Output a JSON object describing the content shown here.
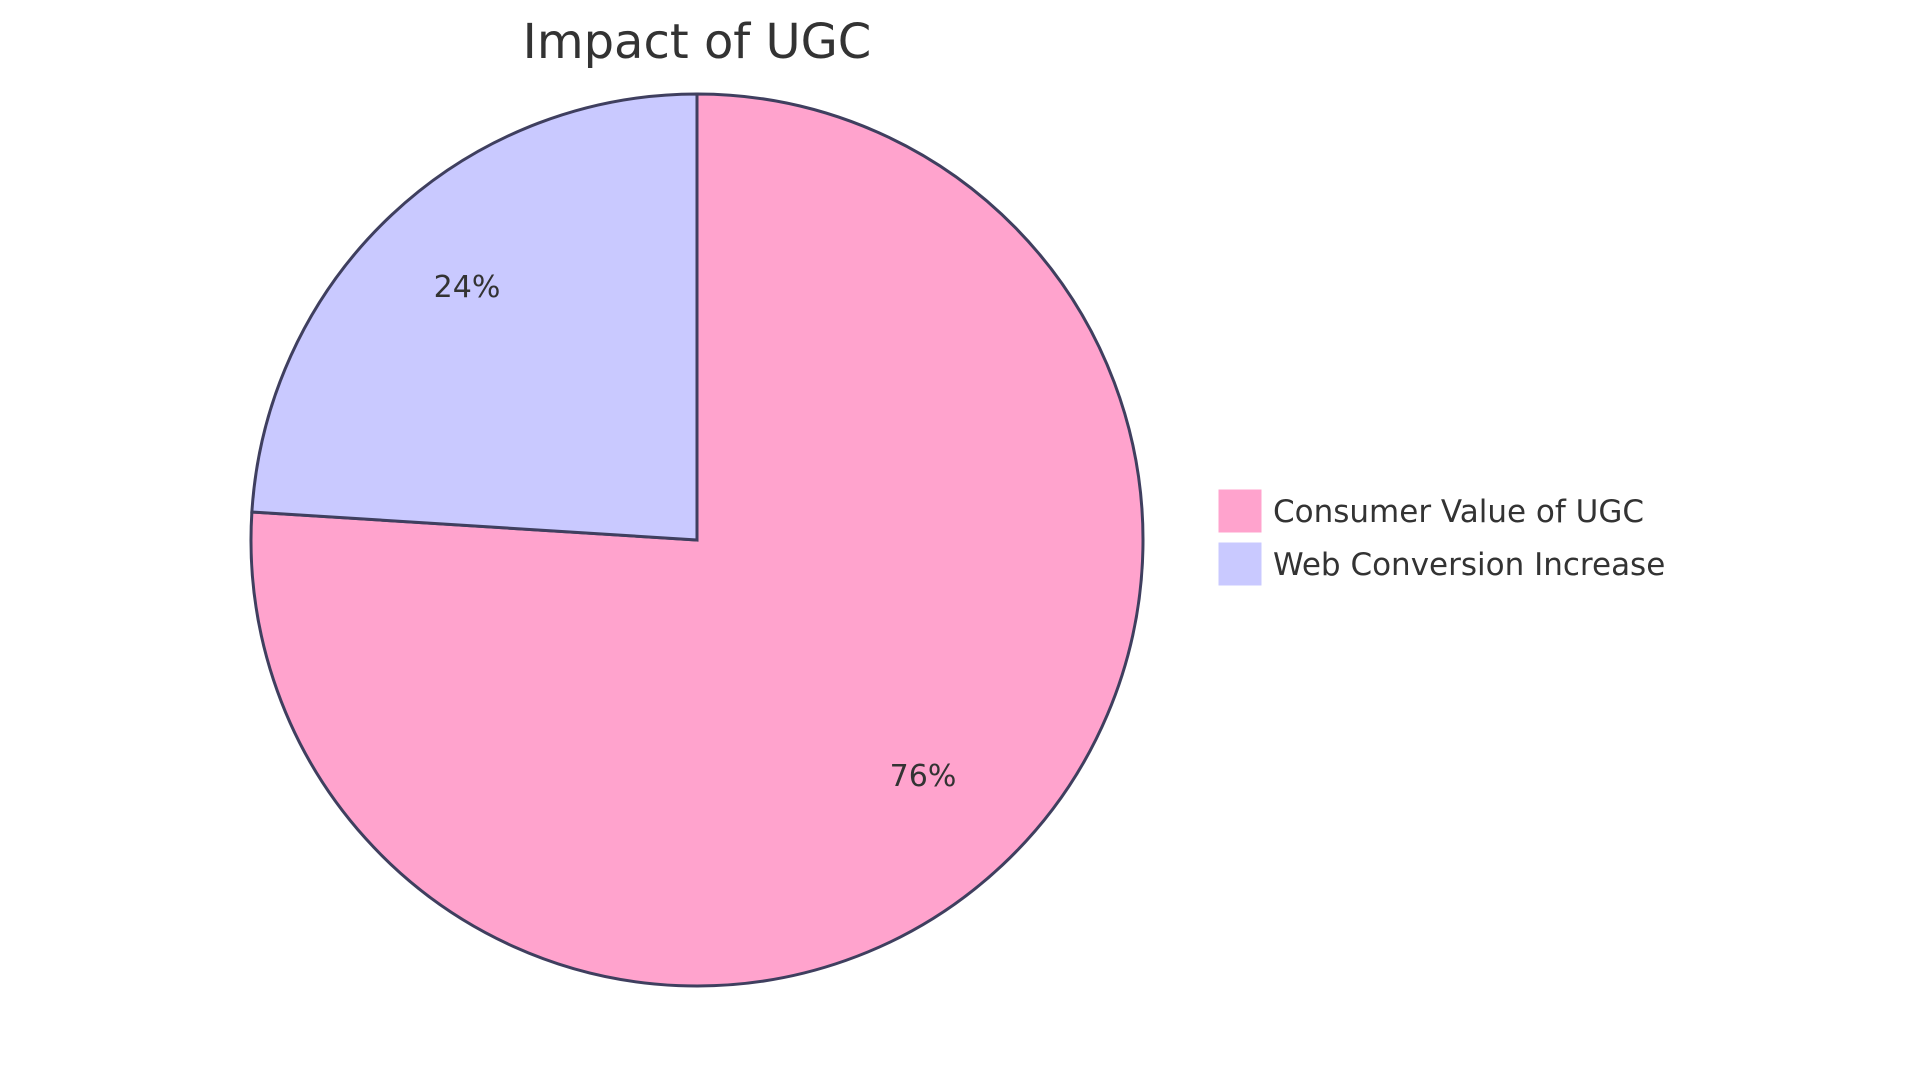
{
  "chart_data": {
    "type": "pie",
    "title": "Impact of UGC",
    "categories": [
      "Consumer Value of UGC",
      "Web Conversion Increase"
    ],
    "values": [
      76,
      24
    ],
    "labels": [
      "76%",
      "24%"
    ],
    "colors": [
      "#FFA3CD",
      "#C9C9FF"
    ],
    "stroke_color": "#3F3F5F",
    "legend_position": "right"
  },
  "title": "Impact of UGC",
  "slices": [
    {
      "name": "Consumer Value of UGC",
      "label": "76%",
      "color": "#FFA3CD"
    },
    {
      "name": "Web Conversion Increase",
      "label": "24%",
      "color": "#C9C9FF"
    }
  ],
  "legend": [
    {
      "label": "Consumer Value of UGC",
      "color": "#FFA3CD"
    },
    {
      "label": "Web Conversion Increase",
      "color": "#C9C9FF"
    }
  ]
}
